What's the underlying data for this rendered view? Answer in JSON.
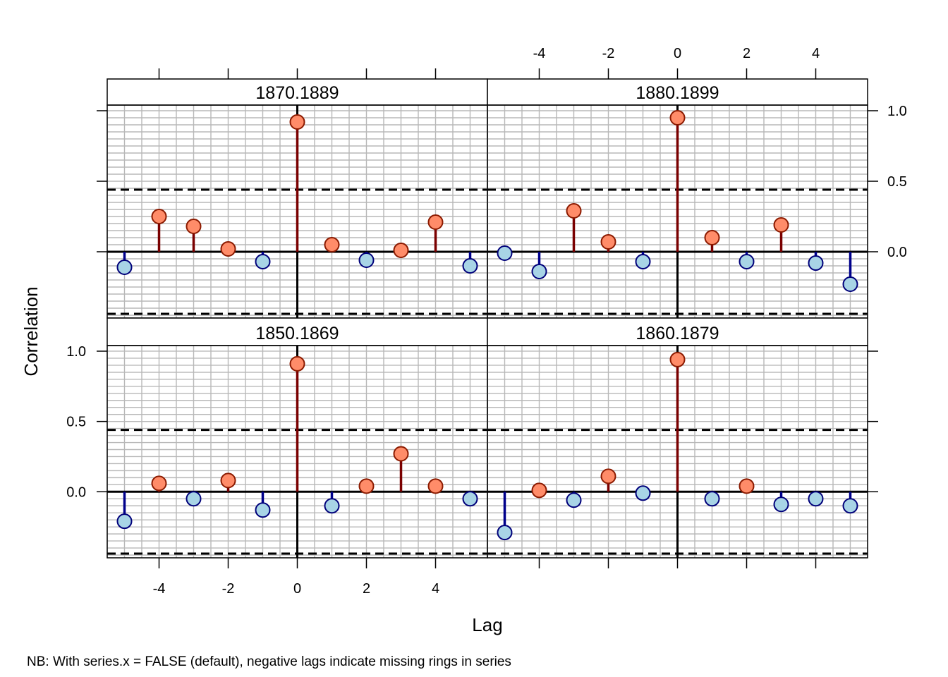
{
  "chart_data": {
    "type": "stem-lattice",
    "xlabel": "Lag",
    "ylabel": "Correlation",
    "footnote": "NB: With series.x = FALSE (default), negative lags indicate missing rings in series",
    "xlim": [
      -5.5,
      5.5
    ],
    "ylim": [
      -0.47,
      1.04
    ],
    "x_ticks": [
      -4,
      -2,
      0,
      2,
      4
    ],
    "y_ticks": [
      0.0,
      0.5,
      1.0
    ],
    "y_tick_labels": [
      "0.0",
      "0.5",
      "1.0"
    ],
    "grid": true,
    "confidence_bound": 0.44,
    "lags": [
      -5,
      -4,
      -3,
      -2,
      -1,
      0,
      1,
      2,
      3,
      4,
      5
    ],
    "colors": {
      "positive_fill": "#ff8c69",
      "positive_stroke": "#8b1a00",
      "positive_stem": "#7a0000",
      "negative_fill": "#a8d4e6",
      "negative_stroke": "#00007a",
      "negative_stem": "#00008b",
      "grid": "#b8b8b8",
      "strip_bg": "#ffffff"
    },
    "panels": [
      {
        "label": "1870.1889",
        "values": [
          -0.11,
          0.25,
          0.18,
          0.02,
          -0.07,
          0.92,
          0.05,
          -0.06,
          0.01,
          0.21,
          -0.1
        ]
      },
      {
        "label": "1880.1899",
        "values": [
          -0.01,
          -0.14,
          0.29,
          0.07,
          -0.07,
          0.95,
          0.1,
          -0.07,
          0.19,
          -0.08,
          -0.23
        ]
      },
      {
        "label": "1850.1869",
        "values": [
          -0.21,
          0.06,
          -0.05,
          0.08,
          -0.13,
          0.91,
          -0.1,
          0.04,
          0.27,
          0.04,
          -0.05
        ]
      },
      {
        "label": "1860.1879",
        "values": [
          -0.29,
          0.01,
          -0.06,
          0.11,
          -0.01,
          0.94,
          -0.05,
          0.04,
          -0.09,
          -0.05,
          -0.1
        ]
      }
    ]
  }
}
